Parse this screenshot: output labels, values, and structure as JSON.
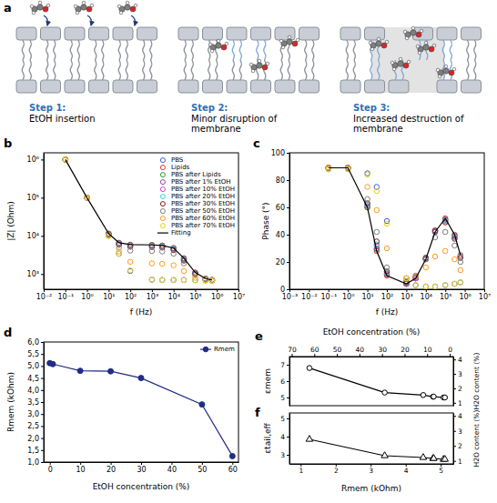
{
  "panel_a": {
    "letter": "a",
    "steps": [
      {
        "title": "Step 1:",
        "text": "EtOH insertion"
      },
      {
        "title": "Step 2:",
        "text": "Minor disruption of membrane"
      },
      {
        "title": "Step 3:",
        "text": "Increased destruction of membrane"
      }
    ]
  },
  "chart_data": [
    {
      "panel": "b",
      "type": "scatter",
      "log": true,
      "marker": "open_circle",
      "legend": "upper right",
      "xlabel": "f (Hz)",
      "ylabel": "|Z| (Ohm)",
      "xlim": [
        0.01,
        10000000
      ],
      "ylim": [
        400,
        1500000
      ],
      "xticks": [
        {
          "value": 0.01,
          "label": "10⁻²"
        },
        {
          "value": 0.1,
          "label": "10⁻¹"
        },
        {
          "value": 1,
          "label": "10⁰"
        },
        {
          "value": 10,
          "label": "10¹"
        },
        {
          "value": 100,
          "label": "10²"
        },
        {
          "value": 1000,
          "label": "10³"
        },
        {
          "value": 10000,
          "label": "10⁴"
        },
        {
          "value": 100000,
          "label": "10⁵"
        },
        {
          "value": 1000000,
          "label": "10⁶"
        },
        {
          "value": 10000000,
          "label": "10⁷"
        }
      ],
      "yticks": [
        {
          "value": 1000,
          "label": "10³"
        },
        {
          "value": 10000,
          "label": "10⁴"
        },
        {
          "value": 100000,
          "label": "10⁵"
        },
        {
          "value": 1000000,
          "label": "10⁶"
        }
      ],
      "x": [
        0.1,
        1,
        10,
        30,
        100,
        1000,
        3000,
        10000,
        30000,
        100000,
        300000,
        600000
      ],
      "series": [
        {
          "name": "PBS",
          "color": "#3d5fd9",
          "values": [
            1000000,
            100000,
            10000,
            3400,
            1200,
            710,
            700,
            700,
            700,
            690,
            680,
            670
          ]
        },
        {
          "name": "Lipids",
          "color": "#e3342f",
          "values": [
            1000000,
            100000,
            11500,
            6600,
            5900,
            5800,
            5600,
            4800,
            2600,
            1100,
            760,
            700
          ]
        },
        {
          "name": "PBS after Lipids",
          "color": "#2ca02c",
          "values": [
            1000000,
            100000,
            11400,
            6500,
            5800,
            5750,
            5550,
            4750,
            2550,
            1080,
            750,
            700
          ]
        },
        {
          "name": "PBS after 1% EtOH",
          "color": "#8e44ad",
          "values": [
            1000000,
            100000,
            11300,
            6400,
            5750,
            5650,
            5450,
            4650,
            2500,
            1070,
            750,
            700
          ]
        },
        {
          "name": "PBS after 10% EtOH",
          "color": "#d63fd6",
          "values": [
            1000000,
            100000,
            11100,
            6200,
            5500,
            5400,
            5250,
            4500,
            2400,
            1050,
            740,
            690
          ]
        },
        {
          "name": "PBS after 20% EtOH",
          "color": "#33d6e0",
          "values": [
            1000000,
            100000,
            11000,
            6100,
            5450,
            5350,
            5200,
            4450,
            2350,
            1040,
            740,
            690
          ]
        },
        {
          "name": "PBS after 30% EtOH",
          "color": "#8b1e1e",
          "values": [
            1000000,
            100000,
            10900,
            5900,
            5200,
            5100,
            4950,
            4250,
            2250,
            1020,
            730,
            690
          ]
        },
        {
          "name": "PBS after 50% EtOH",
          "color": "#7f7f7f",
          "values": [
            1000000,
            100000,
            10700,
            4900,
            4100,
            4000,
            3900,
            3400,
            1900,
            950,
            720,
            680
          ]
        },
        {
          "name": "PBS after 60% EtOH",
          "color": "#ff9a1f",
          "values": [
            1000000,
            100000,
            10200,
            3900,
            2100,
            1900,
            1850,
            1700,
            1200,
            800,
            700,
            680
          ]
        },
        {
          "name": "PBS after 70% EtOH",
          "color": "#e8d21a",
          "values": [
            1000000,
            100000,
            10000,
            3400,
            1250,
            720,
            700,
            700,
            700,
            690,
            680,
            670
          ]
        },
        {
          "name": "Fitting",
          "type": "line",
          "marker": "none",
          "color": "#000000",
          "values": [
            1000000,
            100000,
            11500,
            6600,
            5900,
            5800,
            5600,
            4800,
            2600,
            1100,
            760,
            700
          ]
        }
      ]
    },
    {
      "panel": "c",
      "type": "scatter",
      "log": "x",
      "marker": "open_circle",
      "xlabel": "f (Hz)",
      "ylabel": "Phase (°)",
      "xlim": [
        0.001,
        10000000
      ],
      "ylim": [
        0,
        100
      ],
      "xticks": [
        {
          "value": 0.001,
          "label": "10⁻³"
        },
        {
          "value": 0.01,
          "label": "10⁻²"
        },
        {
          "value": 0.1,
          "label": "10⁻¹"
        },
        {
          "value": 1,
          "label": "10⁰"
        },
        {
          "value": 10,
          "label": "10¹"
        },
        {
          "value": 100,
          "label": "10²"
        },
        {
          "value": 1000,
          "label": "10³"
        },
        {
          "value": 10000,
          "label": "10⁴"
        },
        {
          "value": 100000,
          "label": "10⁵"
        },
        {
          "value": 1000000,
          "label": "10⁶"
        },
        {
          "value": 10000000,
          "label": "10⁷"
        }
      ],
      "yticks": [
        0,
        20,
        40,
        60,
        80,
        100
      ],
      "x": [
        0.1,
        1,
        10,
        30,
        100,
        1000,
        3000,
        10000,
        30000,
        100000,
        300000,
        600000
      ],
      "series": [
        {
          "name": "PBS",
          "color": "#3d5fd9",
          "values": [
            88,
            88,
            85,
            75,
            50,
            8,
            3,
            2,
            2,
            3,
            4,
            5
          ]
        },
        {
          "name": "Lipids",
          "color": "#e3342f",
          "values": [
            89,
            89,
            60,
            28,
            10,
            4,
            8,
            22,
            42,
            52,
            40,
            25
          ]
        },
        {
          "name": "PBS after Lipids",
          "color": "#2ca02c",
          "values": [
            89,
            89,
            60,
            29,
            11,
            4,
            8,
            22,
            42,
            51,
            39,
            24
          ]
        },
        {
          "name": "PBS after 1% EtOH",
          "color": "#8e44ad",
          "values": [
            89,
            89,
            61,
            30,
            11,
            4,
            8,
            22,
            42,
            51,
            39,
            24
          ]
        },
        {
          "name": "PBS after 10% EtOH",
          "color": "#d63fd6",
          "values": [
            89,
            89,
            62,
            32,
            12,
            5,
            8,
            23,
            43,
            50,
            38,
            24
          ]
        },
        {
          "name": "PBS after 20% EtOH",
          "color": "#33d6e0",
          "values": [
            89,
            89,
            62,
            33,
            12,
            5,
            9,
            23,
            43,
            50,
            38,
            24
          ]
        },
        {
          "name": "PBS after 30% EtOH",
          "color": "#8b1e1e",
          "values": [
            89,
            89,
            63,
            35,
            13,
            5,
            9,
            23,
            43,
            49,
            37,
            23
          ]
        },
        {
          "name": "PBS after 50% EtOH",
          "color": "#7f7f7f",
          "values": [
            89,
            89,
            66,
            42,
            16,
            6,
            10,
            22,
            38,
            42,
            32,
            20
          ]
        },
        {
          "name": "PBS after 60% EtOH",
          "color": "#ff9a1f",
          "values": [
            89,
            89,
            75,
            58,
            30,
            8,
            9,
            16,
            24,
            28,
            22,
            14
          ]
        },
        {
          "name": "PBS after 70% EtOH",
          "color": "#e8d21a",
          "values": [
            88,
            88,
            84,
            72,
            48,
            8,
            3,
            2,
            2,
            3,
            4,
            5
          ]
        },
        {
          "name": "Fitting",
          "type": "line",
          "marker": "none",
          "color": "#000000",
          "values": [
            89,
            89,
            60,
            28,
            10,
            4,
            8,
            22,
            42,
            52,
            40,
            25
          ]
        }
      ]
    },
    {
      "panel": "d",
      "type": "line",
      "marker": "circle",
      "legend": "upper right",
      "xlabel": "EtOH concentration (%)",
      "ylabel": "Rmem (kOhm)",
      "xlim": [
        -2,
        62
      ],
      "xticks": [
        0,
        10,
        20,
        30,
        40,
        50,
        60
      ],
      "ylim": [
        1,
        6
      ],
      "yticks": [
        {
          "value": 1,
          "label": "1,0"
        },
        {
          "value": 1.5,
          "label": "1,5"
        },
        {
          "value": 2,
          "label": "2,0"
        },
        {
          "value": 2.5,
          "label": "2,5"
        },
        {
          "value": 3,
          "label": "3,0"
        },
        {
          "value": 3.5,
          "label": "3,5"
        },
        {
          "value": 4,
          "label": "4,0"
        },
        {
          "value": 4.5,
          "label": "4,5"
        },
        {
          "value": 5,
          "label": "5,0"
        },
        {
          "value": 5.5,
          "label": "5,5"
        },
        {
          "value": 6,
          "label": "6,0"
        }
      ],
      "x": [
        0,
        1,
        10,
        20,
        30,
        50,
        60
      ],
      "series": [
        {
          "name": "Rmem",
          "color": "#1f2d86",
          "values": [
            5.12,
            5.08,
            4.8,
            4.78,
            4.5,
            3.4,
            1.25
          ]
        }
      ]
    },
    {
      "panel": "e",
      "type": "line",
      "marker": "open_circle",
      "color": "#000000",
      "x2label": "EtOH concentration (%)",
      "ylabel": "εmem",
      "y2label": "H2O content (%)",
      "xlim": [
        0.68,
        5.36
      ],
      "x2lim": [
        71,
        -1.6
      ],
      "x2ticks": [
        70,
        60,
        50,
        40,
        30,
        20,
        10,
        0
      ],
      "ylim": [
        4.5,
        7.5
      ],
      "yticks": [
        5,
        6,
        7
      ],
      "y2lim": [
        0.8,
        4.2
      ],
      "y2ticks": [
        1,
        2,
        3,
        4
      ],
      "x": [
        1.25,
        3.4,
        4.5,
        4.78,
        4.8,
        5.08,
        5.12
      ],
      "values": [
        6.8,
        5.3,
        5.15,
        5.05,
        5.05,
        5.0,
        5.0
      ]
    },
    {
      "panel": "f",
      "type": "line",
      "marker": "open_triangle",
      "color": "#000000",
      "xlabel": "Rmem (kOhm)",
      "ylabel": "εtail,eff",
      "y2label": "H2O content (%)",
      "xlim": [
        0.68,
        5.36
      ],
      "xticks": [
        1,
        2,
        3,
        4,
        5
      ],
      "ylim": [
        2.5,
        5.3
      ],
      "yticks": [
        3,
        4,
        5
      ],
      "y2lim": [
        0.8,
        4.2
      ],
      "y2ticks": [
        1,
        2,
        3,
        4
      ],
      "x": [
        1.25,
        3.4,
        4.5,
        4.78,
        4.8,
        5.08,
        5.12
      ],
      "values": [
        3.85,
        2.95,
        2.85,
        2.8,
        2.8,
        2.75,
        2.75
      ]
    }
  ]
}
